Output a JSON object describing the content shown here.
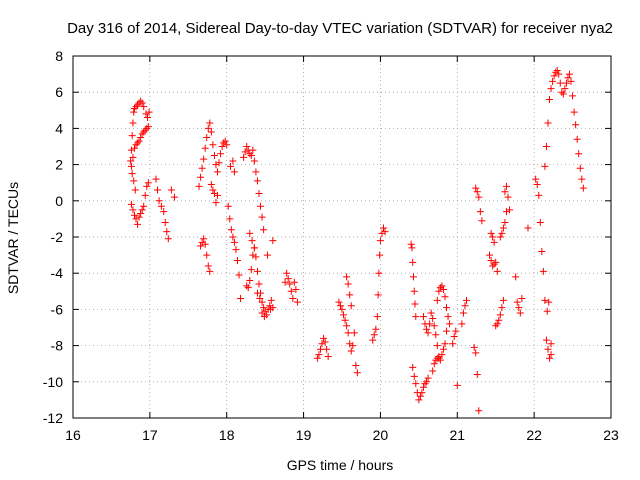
{
  "chart_data": {
    "type": "scatter",
    "title": "Day 316 of 2014, Sidereal Day-to-day VTEC variation (SDTVAR) for receiver nya2",
    "xlabel": "GPS time / hours",
    "ylabel": "SDTVAR / TECUs",
    "xlim": [
      16,
      23
    ],
    "ylim": [
      -12,
      8
    ],
    "xticks": [
      "16",
      "17",
      "18",
      "19",
      "20",
      "21",
      "22",
      "23"
    ],
    "yticks": [
      "-12",
      "-10",
      "-8",
      "-6",
      "-4",
      "-2",
      "0",
      "2",
      "4",
      "6",
      "8"
    ],
    "grid": true,
    "marker": "plus",
    "color": "#ff0000",
    "series": [
      {
        "name": "SDTVAR",
        "points": [
          [
            16.75,
            2.2
          ],
          [
            16.76,
            2.8
          ],
          [
            16.77,
            3.6
          ],
          [
            16.78,
            4.3
          ],
          [
            16.79,
            4.9
          ],
          [
            16.8,
            5.1
          ],
          [
            16.82,
            5.2
          ],
          [
            16.84,
            5.3
          ],
          [
            16.86,
            5.4
          ],
          [
            16.88,
            5.5
          ],
          [
            16.9,
            5.4
          ],
          [
            16.92,
            5.2
          ],
          [
            16.95,
            4.8
          ],
          [
            16.97,
            4.6
          ],
          [
            16.99,
            4.9
          ],
          [
            16.76,
            1.9
          ],
          [
            16.78,
            2.4
          ],
          [
            16.8,
            2.9
          ],
          [
            16.82,
            3.1
          ],
          [
            16.84,
            3.2
          ],
          [
            16.86,
            3.3
          ],
          [
            16.88,
            3.5
          ],
          [
            16.9,
            3.7
          ],
          [
            16.92,
            3.8
          ],
          [
            16.94,
            3.9
          ],
          [
            16.96,
            4.0
          ],
          [
            16.98,
            4.1
          ],
          [
            16.77,
            1.5
          ],
          [
            16.79,
            1.1
          ],
          [
            16.81,
            0.6
          ],
          [
            16.76,
            -0.2
          ],
          [
            16.78,
            -0.5
          ],
          [
            16.8,
            -0.8
          ],
          [
            16.82,
            -1.0
          ],
          [
            16.84,
            -1.3
          ],
          [
            16.86,
            -0.9
          ],
          [
            16.88,
            -0.7
          ],
          [
            16.9,
            -0.5
          ],
          [
            16.92,
            -0.3
          ],
          [
            16.94,
            0.3
          ],
          [
            16.96,
            0.8
          ],
          [
            16.98,
            1.0
          ],
          [
            17.08,
            1.2
          ],
          [
            17.1,
            0.6
          ],
          [
            17.12,
            0.0
          ],
          [
            17.15,
            -0.3
          ],
          [
            17.18,
            -0.6
          ],
          [
            17.2,
            -1.2
          ],
          [
            17.22,
            -1.7
          ],
          [
            17.24,
            -2.1
          ],
          [
            17.28,
            0.6
          ],
          [
            17.32,
            0.2
          ],
          [
            17.64,
            0.8
          ],
          [
            17.66,
            1.3
          ],
          [
            17.68,
            1.8
          ],
          [
            17.7,
            2.3
          ],
          [
            17.72,
            2.9
          ],
          [
            17.74,
            3.5
          ],
          [
            17.76,
            4.0
          ],
          [
            17.78,
            4.3
          ],
          [
            17.8,
            3.8
          ],
          [
            17.82,
            3.1
          ],
          [
            17.84,
            2.5
          ],
          [
            17.86,
            2.0
          ],
          [
            17.88,
            1.6
          ],
          [
            17.9,
            2.1
          ],
          [
            17.92,
            2.6
          ],
          [
            17.94,
            3.0
          ],
          [
            17.96,
            3.2
          ],
          [
            17.98,
            3.3
          ],
          [
            18.0,
            3.1
          ],
          [
            17.66,
            -2.5
          ],
          [
            17.68,
            -2.3
          ],
          [
            17.7,
            -2.1
          ],
          [
            17.72,
            -2.4
          ],
          [
            17.74,
            -3.0
          ],
          [
            17.76,
            -3.6
          ],
          [
            17.78,
            -3.9
          ],
          [
            17.8,
            0.9
          ],
          [
            17.82,
            0.6
          ],
          [
            17.84,
            0.4
          ],
          [
            17.86,
            -0.1
          ],
          [
            17.88,
            0.3
          ],
          [
            18.02,
            -0.3
          ],
          [
            18.04,
            -1.0
          ],
          [
            18.06,
            -1.6
          ],
          [
            18.08,
            -2.0
          ],
          [
            18.1,
            -2.3
          ],
          [
            18.12,
            -2.7
          ],
          [
            18.14,
            -3.3
          ],
          [
            18.16,
            -4.1
          ],
          [
            18.18,
            -5.4
          ],
          [
            18.05,
            1.9
          ],
          [
            18.08,
            2.2
          ],
          [
            18.1,
            1.6
          ],
          [
            18.22,
            2.4
          ],
          [
            18.24,
            2.7
          ],
          [
            18.26,
            3.0
          ],
          [
            18.28,
            2.8
          ],
          [
            18.3,
            2.6
          ],
          [
            18.32,
            2.5
          ],
          [
            18.34,
            2.8
          ],
          [
            18.36,
            2.2
          ],
          [
            18.38,
            1.6
          ],
          [
            18.4,
            1.1
          ],
          [
            18.42,
            0.4
          ],
          [
            18.44,
            -0.3
          ],
          [
            18.46,
            -0.9
          ],
          [
            18.48,
            -1.6
          ],
          [
            18.26,
            -4.7
          ],
          [
            18.28,
            -4.8
          ],
          [
            18.3,
            -4.4
          ],
          [
            18.32,
            -3.8
          ],
          [
            18.34,
            -3.0
          ],
          [
            18.36,
            -2.6
          ],
          [
            18.38,
            -3.1
          ],
          [
            18.4,
            -3.9
          ],
          [
            18.42,
            -4.6
          ],
          [
            18.44,
            -5.1
          ],
          [
            18.46,
            -5.6
          ],
          [
            18.48,
            -5.9
          ],
          [
            18.5,
            -6.1
          ],
          [
            18.52,
            -6.3
          ],
          [
            18.54,
            -6.0
          ],
          [
            18.56,
            -5.8
          ],
          [
            18.58,
            -5.5
          ],
          [
            18.6,
            -5.9
          ],
          [
            18.3,
            -1.8
          ],
          [
            18.33,
            -2.2
          ],
          [
            18.36,
            -2.6
          ],
          [
            18.4,
            -5.1
          ],
          [
            18.43,
            -5.4
          ],
          [
            18.46,
            -6.2
          ],
          [
            18.49,
            -6.4
          ],
          [
            18.53,
            -3.0
          ],
          [
            18.57,
            -6.0
          ],
          [
            18.6,
            -2.2
          ],
          [
            18.78,
            -4.0
          ],
          [
            18.8,
            -4.3
          ],
          [
            18.82,
            -4.6
          ],
          [
            18.84,
            -5.0
          ],
          [
            18.86,
            -5.4
          ],
          [
            18.88,
            -4.5
          ],
          [
            18.9,
            -4.9
          ],
          [
            18.92,
            -5.6
          ],
          [
            18.76,
            -4.5
          ],
          [
            19.18,
            -8.7
          ],
          [
            19.2,
            -8.5
          ],
          [
            19.22,
            -8.2
          ],
          [
            19.24,
            -7.9
          ],
          [
            19.26,
            -7.6
          ],
          [
            19.28,
            -7.8
          ],
          [
            19.3,
            -8.2
          ],
          [
            19.32,
            -8.6
          ],
          [
            19.46,
            -5.6
          ],
          [
            19.48,
            -5.8
          ],
          [
            19.5,
            -6.0
          ],
          [
            19.52,
            -6.3
          ],
          [
            19.54,
            -6.6
          ],
          [
            19.56,
            -6.9
          ],
          [
            19.58,
            -7.3
          ],
          [
            19.6,
            -7.9
          ],
          [
            19.62,
            -8.3
          ],
          [
            19.64,
            -8.0
          ],
          [
            19.66,
            -7.3
          ],
          [
            19.56,
            -4.2
          ],
          [
            19.58,
            -4.6
          ],
          [
            19.6,
            -5.2
          ],
          [
            19.62,
            -5.8
          ],
          [
            19.68,
            -9.1
          ],
          [
            19.7,
            -9.5
          ],
          [
            19.9,
            -7.7
          ],
          [
            19.92,
            -7.4
          ],
          [
            19.94,
            -7.1
          ],
          [
            19.96,
            -6.4
          ],
          [
            19.97,
            -5.2
          ],
          [
            19.98,
            -4.0
          ],
          [
            19.99,
            -3.0
          ],
          [
            20.0,
            -2.2
          ],
          [
            20.02,
            -1.8
          ],
          [
            20.04,
            -1.5
          ],
          [
            20.06,
            -1.7
          ],
          [
            20.4,
            -2.4
          ],
          [
            20.41,
            -2.6
          ],
          [
            20.42,
            -3.4
          ],
          [
            20.43,
            -4.2
          ],
          [
            20.44,
            -5.0
          ],
          [
            20.45,
            -5.7
          ],
          [
            20.46,
            -6.4
          ],
          [
            20.42,
            -9.2
          ],
          [
            20.44,
            -9.7
          ],
          [
            20.46,
            -10.1
          ],
          [
            20.48,
            -10.6
          ],
          [
            20.5,
            -11.0
          ],
          [
            20.52,
            -10.8
          ],
          [
            20.54,
            -10.6
          ],
          [
            20.56,
            -10.3
          ],
          [
            20.58,
            -10.1
          ],
          [
            20.6,
            -10.0
          ],
          [
            20.62,
            -9.8
          ],
          [
            20.56,
            -6.4
          ],
          [
            20.58,
            -6.8
          ],
          [
            20.6,
            -7.1
          ],
          [
            20.62,
            -7.3
          ],
          [
            20.64,
            -6.8
          ],
          [
            20.66,
            -6.2
          ],
          [
            20.68,
            -6.5
          ],
          [
            20.7,
            -6.9
          ],
          [
            20.72,
            -7.4
          ],
          [
            20.74,
            -8.0
          ],
          [
            20.76,
            -8.7
          ],
          [
            20.68,
            -9.4
          ],
          [
            20.7,
            -9.0
          ],
          [
            20.72,
            -8.8
          ],
          [
            20.74,
            -8.7
          ],
          [
            20.76,
            -8.6
          ],
          [
            20.78,
            -8.8
          ],
          [
            20.8,
            -8.5
          ],
          [
            20.82,
            -8.2
          ],
          [
            20.84,
            -7.9
          ],
          [
            20.86,
            -7.2
          ],
          [
            20.74,
            -5.5
          ],
          [
            20.76,
            -5.0
          ],
          [
            20.78,
            -4.8
          ],
          [
            20.8,
            -4.7
          ],
          [
            20.82,
            -4.9
          ],
          [
            20.84,
            -5.3
          ],
          [
            20.86,
            -5.9
          ],
          [
            20.88,
            -6.4
          ],
          [
            20.9,
            -6.8
          ],
          [
            20.94,
            -7.9
          ],
          [
            20.96,
            -7.5
          ],
          [
            20.98,
            -7.2
          ],
          [
            21.0,
            -10.2
          ],
          [
            21.06,
            -6.8
          ],
          [
            21.08,
            -6.2
          ],
          [
            21.1,
            -5.8
          ],
          [
            21.12,
            -5.5
          ],
          [
            21.22,
            -8.1
          ],
          [
            21.24,
            -8.4
          ],
          [
            21.26,
            -9.6
          ],
          [
            21.28,
            -11.6
          ],
          [
            21.24,
            0.7
          ],
          [
            21.26,
            0.5
          ],
          [
            21.28,
            0.2
          ],
          [
            21.3,
            -0.6
          ],
          [
            21.32,
            -1.1
          ],
          [
            21.42,
            -3.0
          ],
          [
            21.44,
            -3.3
          ],
          [
            21.46,
            -3.6
          ],
          [
            21.48,
            -3.5
          ],
          [
            21.5,
            -3.4
          ],
          [
            21.52,
            -3.9
          ],
          [
            21.44,
            -1.8
          ],
          [
            21.46,
            -2.0
          ],
          [
            21.48,
            -2.3
          ],
          [
            21.5,
            -6.9
          ],
          [
            21.52,
            -6.8
          ],
          [
            21.54,
            -6.6
          ],
          [
            21.56,
            -6.3
          ],
          [
            21.58,
            -5.9
          ],
          [
            21.6,
            -5.5
          ],
          [
            21.56,
            -2.0
          ],
          [
            21.58,
            -1.8
          ],
          [
            21.6,
            -1.5
          ],
          [
            21.62,
            -1.2
          ],
          [
            21.64,
            -0.6
          ],
          [
            21.62,
            0.5
          ],
          [
            21.64,
            0.8
          ],
          [
            21.66,
            0.2
          ],
          [
            21.68,
            -0.5
          ],
          [
            21.78,
            -5.6
          ],
          [
            21.8,
            -5.9
          ],
          [
            21.82,
            -6.2
          ],
          [
            21.84,
            -5.4
          ],
          [
            21.76,
            -4.2
          ],
          [
            21.92,
            -1.5
          ],
          [
            22.02,
            1.2
          ],
          [
            22.04,
            0.9
          ],
          [
            22.06,
            0.3
          ],
          [
            22.08,
            -1.2
          ],
          [
            22.1,
            -2.8
          ],
          [
            22.12,
            -3.9
          ],
          [
            22.14,
            -5.5
          ],
          [
            22.16,
            -7.7
          ],
          [
            22.18,
            -8.2
          ],
          [
            22.2,
            -8.7
          ],
          [
            22.22,
            -8.5
          ],
          [
            22.14,
            1.9
          ],
          [
            22.16,
            3.0
          ],
          [
            22.18,
            4.3
          ],
          [
            22.2,
            5.6
          ],
          [
            22.22,
            6.2
          ],
          [
            22.24,
            6.6
          ],
          [
            22.26,
            6.9
          ],
          [
            22.28,
            7.1
          ],
          [
            22.3,
            7.2
          ],
          [
            22.32,
            7.0
          ],
          [
            22.34,
            6.5
          ],
          [
            22.36,
            6.0
          ],
          [
            22.38,
            5.9
          ],
          [
            22.4,
            6.2
          ],
          [
            22.42,
            6.5
          ],
          [
            22.44,
            6.8
          ],
          [
            22.46,
            7.0
          ],
          [
            22.48,
            6.6
          ],
          [
            22.5,
            5.8
          ],
          [
            22.52,
            4.9
          ],
          [
            22.54,
            4.2
          ],
          [
            22.56,
            3.4
          ],
          [
            22.58,
            2.6
          ],
          [
            22.6,
            1.8
          ],
          [
            22.62,
            1.2
          ],
          [
            22.64,
            0.7
          ],
          [
            22.19,
            -5.6
          ],
          [
            22.17,
            -6.1
          ],
          [
            22.22,
            -7.9
          ]
        ]
      }
    ]
  }
}
